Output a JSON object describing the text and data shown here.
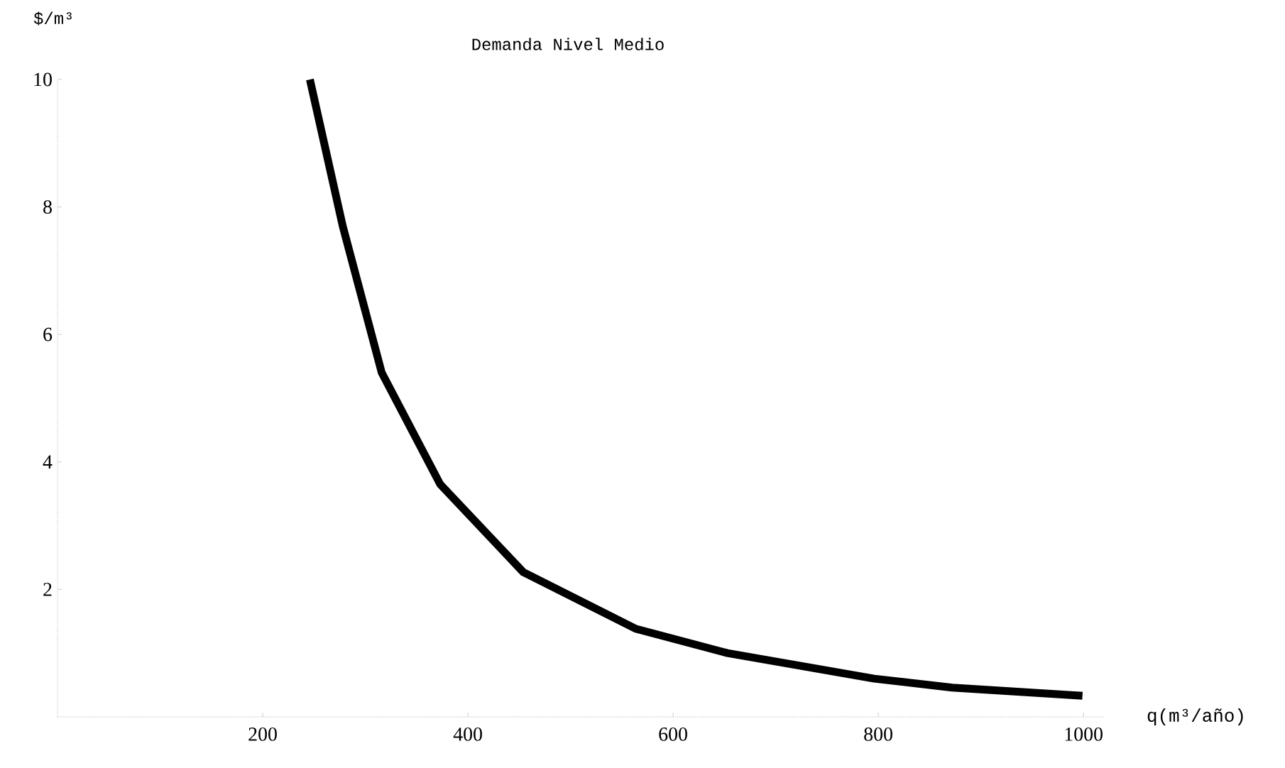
{
  "chart_data": {
    "type": "line",
    "title": "Demanda  Nivel  Medio",
    "xlabel": "q(m³/año)",
    "ylabel": "$/m³",
    "x": [
      246,
      278,
      316,
      373,
      454,
      564,
      653,
      796,
      872,
      999
    ],
    "series": [
      {
        "color": "#000000",
        "values": [
          10,
          7.7,
          5.4,
          3.65,
          2.27,
          1.38,
          1.0,
          0.6,
          0.46,
          0.33
        ]
      }
    ],
    "xlim": [
      0,
      1020
    ],
    "ylim": [
      0,
      10
    ],
    "xticks": [
      200,
      400,
      600,
      800,
      1000
    ],
    "yticks": [
      2,
      4,
      6,
      8,
      10
    ]
  }
}
